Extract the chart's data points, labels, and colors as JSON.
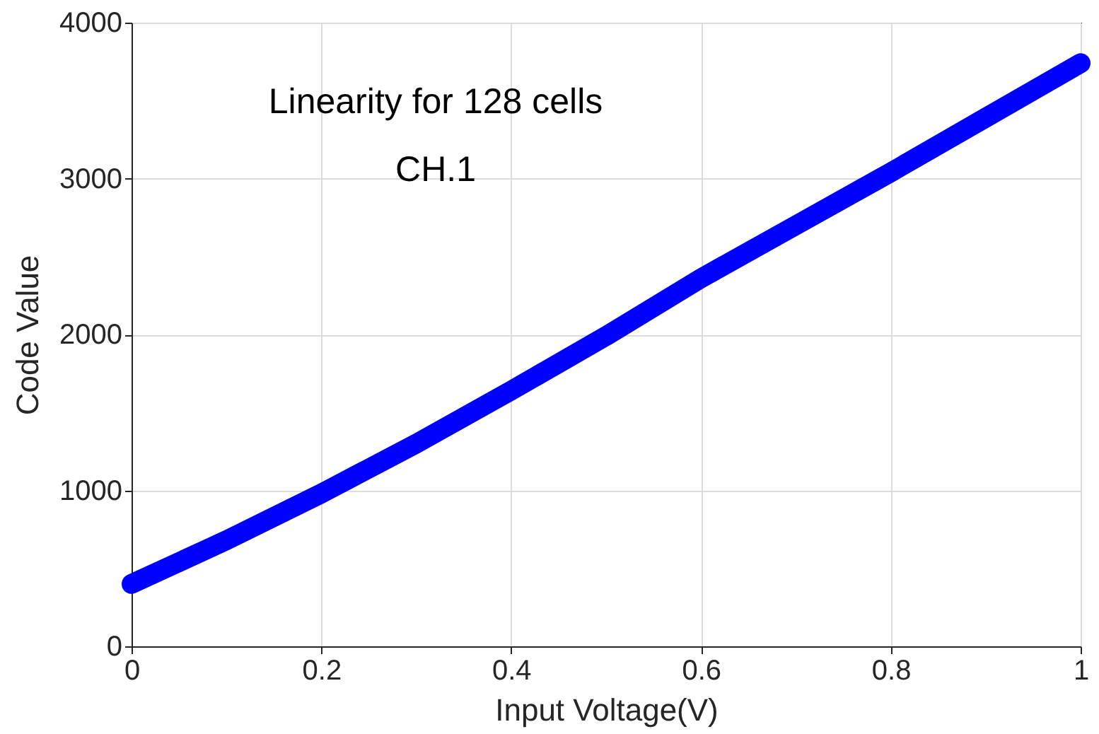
{
  "chart_data": {
    "type": "line",
    "xlabel": "Input Voltage(V)",
    "ylabel": "Code Value",
    "annotations": [
      "Linearity for 128 cells",
      "CH.1"
    ],
    "x": [
      0,
      0.1,
      0.2,
      0.3,
      0.4,
      0.5,
      0.6,
      0.7,
      0.8,
      0.9,
      1
    ],
    "series": [
      {
        "color": "#0000ff",
        "values": [
          400,
          680,
          980,
          1300,
          1640,
          1990,
          2360,
          2700,
          3040,
          3390,
          3740
        ]
      }
    ],
    "xlim": [
      0,
      1
    ],
    "xticks": [
      0,
      0.2,
      0.4,
      0.6,
      0.8,
      1
    ],
    "ylim": [
      0,
      4000
    ],
    "yticks": [
      0,
      1000,
      2000,
      3000,
      4000
    ],
    "grid": true,
    "line_style": "solid"
  }
}
